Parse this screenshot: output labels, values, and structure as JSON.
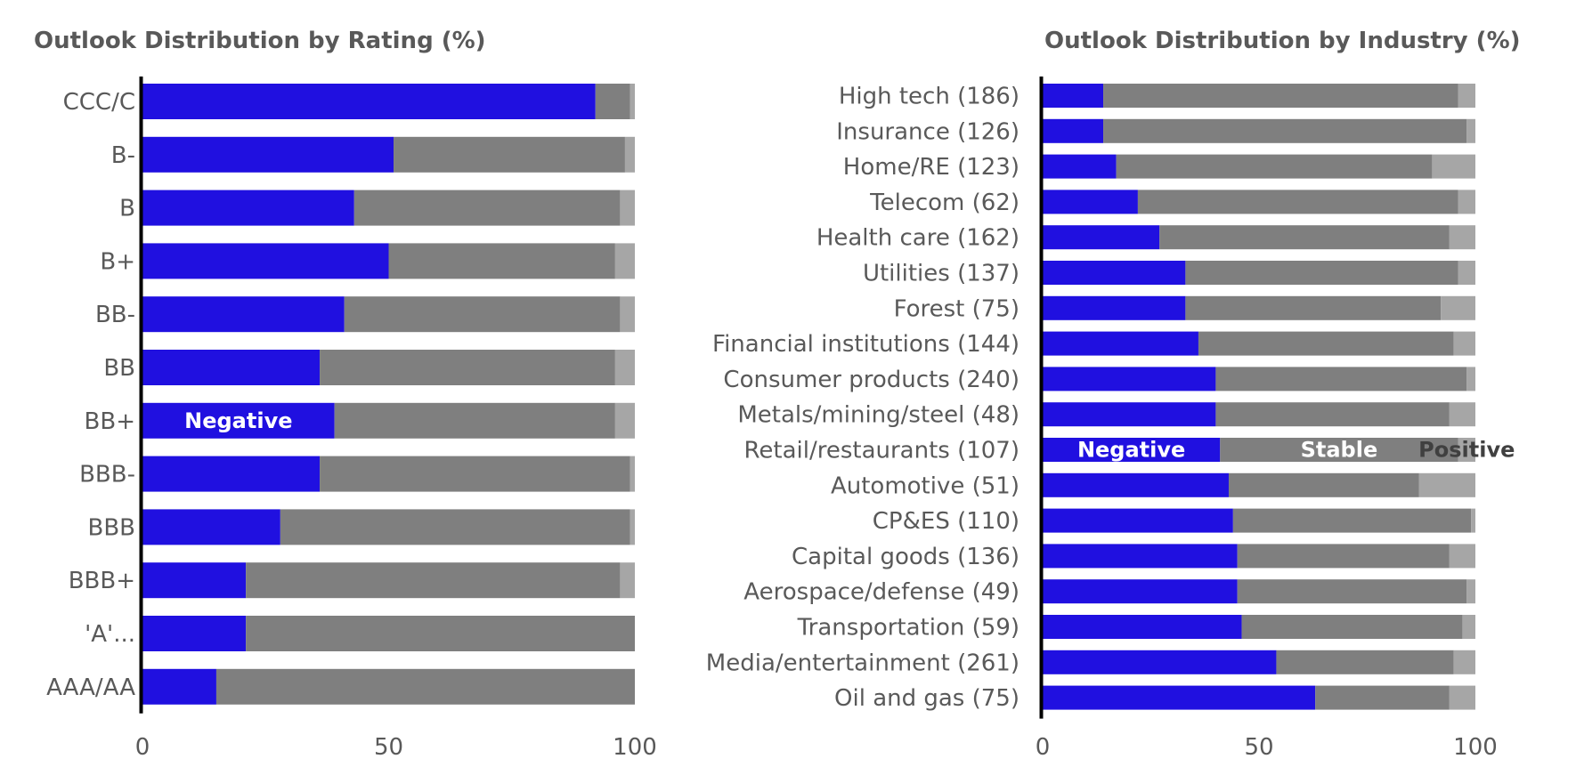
{
  "colors": {
    "negative": "#2010E0",
    "stable": "#7F7F7F",
    "positive": "#A6A6A6",
    "axis": "#000000",
    "text": "#595959"
  },
  "chart_data": [
    {
      "type": "bar",
      "orientation": "horizontal",
      "stacked": true,
      "title": "Outlook Distribution by Rating (%)",
      "categories": [
        "CCC/C",
        "B-",
        "B",
        "B+",
        "BB-",
        "BB",
        "BB+",
        "BBB-",
        "BBB",
        "BBB+",
        "'A'...",
        "AAA/AA"
      ],
      "series": [
        {
          "name": "Negative",
          "values": [
            92,
            51,
            43,
            50,
            41,
            36,
            39,
            36,
            28,
            21,
            21,
            15
          ]
        },
        {
          "name": "Stable",
          "values": [
            7,
            47,
            54,
            46,
            56,
            60,
            57,
            63,
            71,
            76,
            79,
            85
          ]
        },
        {
          "name": "Positive",
          "values": [
            1,
            2,
            3,
            4,
            3,
            4,
            4,
            1,
            1,
            3,
            0,
            0
          ]
        }
      ],
      "xlim": [
        0,
        100
      ],
      "xticks": [
        "0",
        "50",
        "100"
      ],
      "grid": false,
      "inline_labels": [
        {
          "text": "Negative",
          "series": "Negative",
          "category": "BB+"
        }
      ]
    },
    {
      "type": "bar",
      "orientation": "horizontal",
      "stacked": true,
      "title": "Outlook Distribution by Industry (%)",
      "categories": [
        "High tech (186)",
        "Insurance (126)",
        "Home/RE (123)",
        "Telecom (62)",
        "Health care (162)",
        "Utilities (137)",
        "Forest (75)",
        "Financial institutions (144)",
        "Consumer products (240)",
        "Metals/mining/steel (48)",
        "Retail/restaurants (107)",
        "Automotive (51)",
        "CP&ES (110)",
        "Capital goods (136)",
        "Aerospace/defense (49)",
        "Transportation (59)",
        "Media/entertainment (261)",
        "Oil and gas (75)"
      ],
      "series": [
        {
          "name": "Negative",
          "values": [
            14,
            14,
            17,
            22,
            27,
            33,
            33,
            36,
            40,
            40,
            41,
            43,
            44,
            45,
            45,
            46,
            54,
            63
          ]
        },
        {
          "name": "Stable",
          "values": [
            82,
            84,
            73,
            74,
            67,
            63,
            59,
            59,
            58,
            54,
            55,
            44,
            55,
            49,
            53,
            51,
            41,
            31
          ]
        },
        {
          "name": "Positive",
          "values": [
            4,
            2,
            10,
            4,
            6,
            4,
            8,
            5,
            2,
            6,
            4,
            13,
            1,
            6,
            2,
            3,
            5,
            6
          ]
        }
      ],
      "xlim": [
        0,
        100
      ],
      "xticks": [
        "0",
        "50",
        "100"
      ],
      "grid": false,
      "inline_labels": [
        {
          "text": "Negative",
          "series": "Negative",
          "category": "Retail/restaurants (107)"
        },
        {
          "text": "Stable",
          "series": "Stable",
          "category": "Retail/restaurants (107)"
        },
        {
          "text": "Positive",
          "series": "Positive",
          "category": "Retail/restaurants (107)"
        }
      ]
    }
  ]
}
